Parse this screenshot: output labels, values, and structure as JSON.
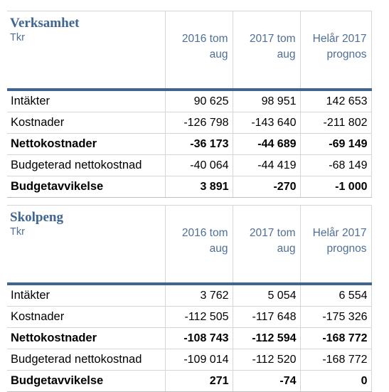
{
  "tables": [
    {
      "name": "Verksamhet",
      "unit": "Tkr",
      "columns": [
        {
          "line1": "2016 tom",
          "line2": "aug"
        },
        {
          "line1": "2017 tom",
          "line2": "aug"
        },
        {
          "line1": "Helår 2017",
          "line2": "prognos"
        }
      ],
      "rows": [
        {
          "label": "Intäkter",
          "values": [
            "90 625",
            "98 951",
            "142 653"
          ],
          "bold": false
        },
        {
          "label": "Kostnader",
          "values": [
            "-126 798",
            "-143 640",
            "-211 802"
          ],
          "bold": false
        },
        {
          "label": "Nettokostnader",
          "values": [
            "-36 173",
            "-44 689",
            "-69 149"
          ],
          "bold": true
        },
        {
          "label": "Budgeterad nettokostnad",
          "values": [
            "-40 064",
            "-44 419",
            "-68 149"
          ],
          "bold": false
        },
        {
          "label": "Budgetavvikelse",
          "values": [
            "3 891",
            "-270",
            "-1 000"
          ],
          "bold": true
        }
      ]
    },
    {
      "name": "Skolpeng",
      "unit": "Tkr",
      "columns": [
        {
          "line1": "2016 tom",
          "line2": "aug"
        },
        {
          "line1": "2017 tom",
          "line2": "aug"
        },
        {
          "line1": "Helår 2017",
          "line2": "prognos"
        }
      ],
      "rows": [
        {
          "label": "Intäkter",
          "values": [
            "3 762",
            "5 054",
            "6 554"
          ],
          "bold": false
        },
        {
          "label": "Kostnader",
          "values": [
            "-112 505",
            "-117 648",
            "-175 326"
          ],
          "bold": false
        },
        {
          "label": "Nettokostnader",
          "values": [
            "-108 743",
            "-112 594",
            "-168 772"
          ],
          "bold": true
        },
        {
          "label": "Budgeterad nettokostnad",
          "values": [
            "-109 014",
            "-112 520",
            "-168 772"
          ],
          "bold": false
        },
        {
          "label": "Budgetavvikelse",
          "values": [
            "271",
            "-74",
            "0"
          ],
          "bold": true
        }
      ]
    }
  ]
}
